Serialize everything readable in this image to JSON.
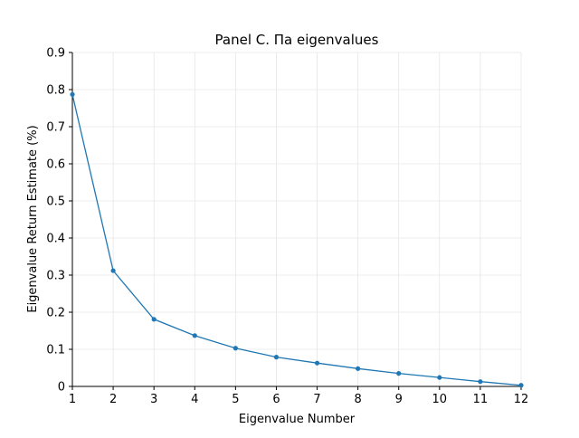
{
  "chart_data": {
    "type": "line",
    "title": "Panel C. Πa eigenvalues",
    "xlabel": "Eigenvalue Number",
    "ylabel": "Eigenvalue Return Estimate (%)",
    "x": [
      1,
      2,
      3,
      4,
      5,
      6,
      7,
      8,
      9,
      10,
      11,
      12
    ],
    "series": [
      {
        "values": [
          0.787,
          0.312,
          0.181,
          0.137,
          0.103,
          0.079,
          0.063,
          0.048,
          0.035,
          0.024,
          0.013,
          0.003
        ]
      }
    ],
    "xlim": [
      1,
      12
    ],
    "ylim": [
      0,
      0.9
    ],
    "xticks": [
      "1",
      "2",
      "3",
      "4",
      "5",
      "6",
      "7",
      "8",
      "9",
      "10",
      "11",
      "12"
    ],
    "yticks": [
      "0",
      "0.1",
      "0.2",
      "0.3",
      "0.4",
      "0.5",
      "0.6",
      "0.7",
      "0.8",
      "0.9"
    ],
    "grid": true,
    "line_color": "#1f77b4",
    "grid_color": "#e6e6e6",
    "axis_color": "#000000",
    "marker": "circle"
  }
}
